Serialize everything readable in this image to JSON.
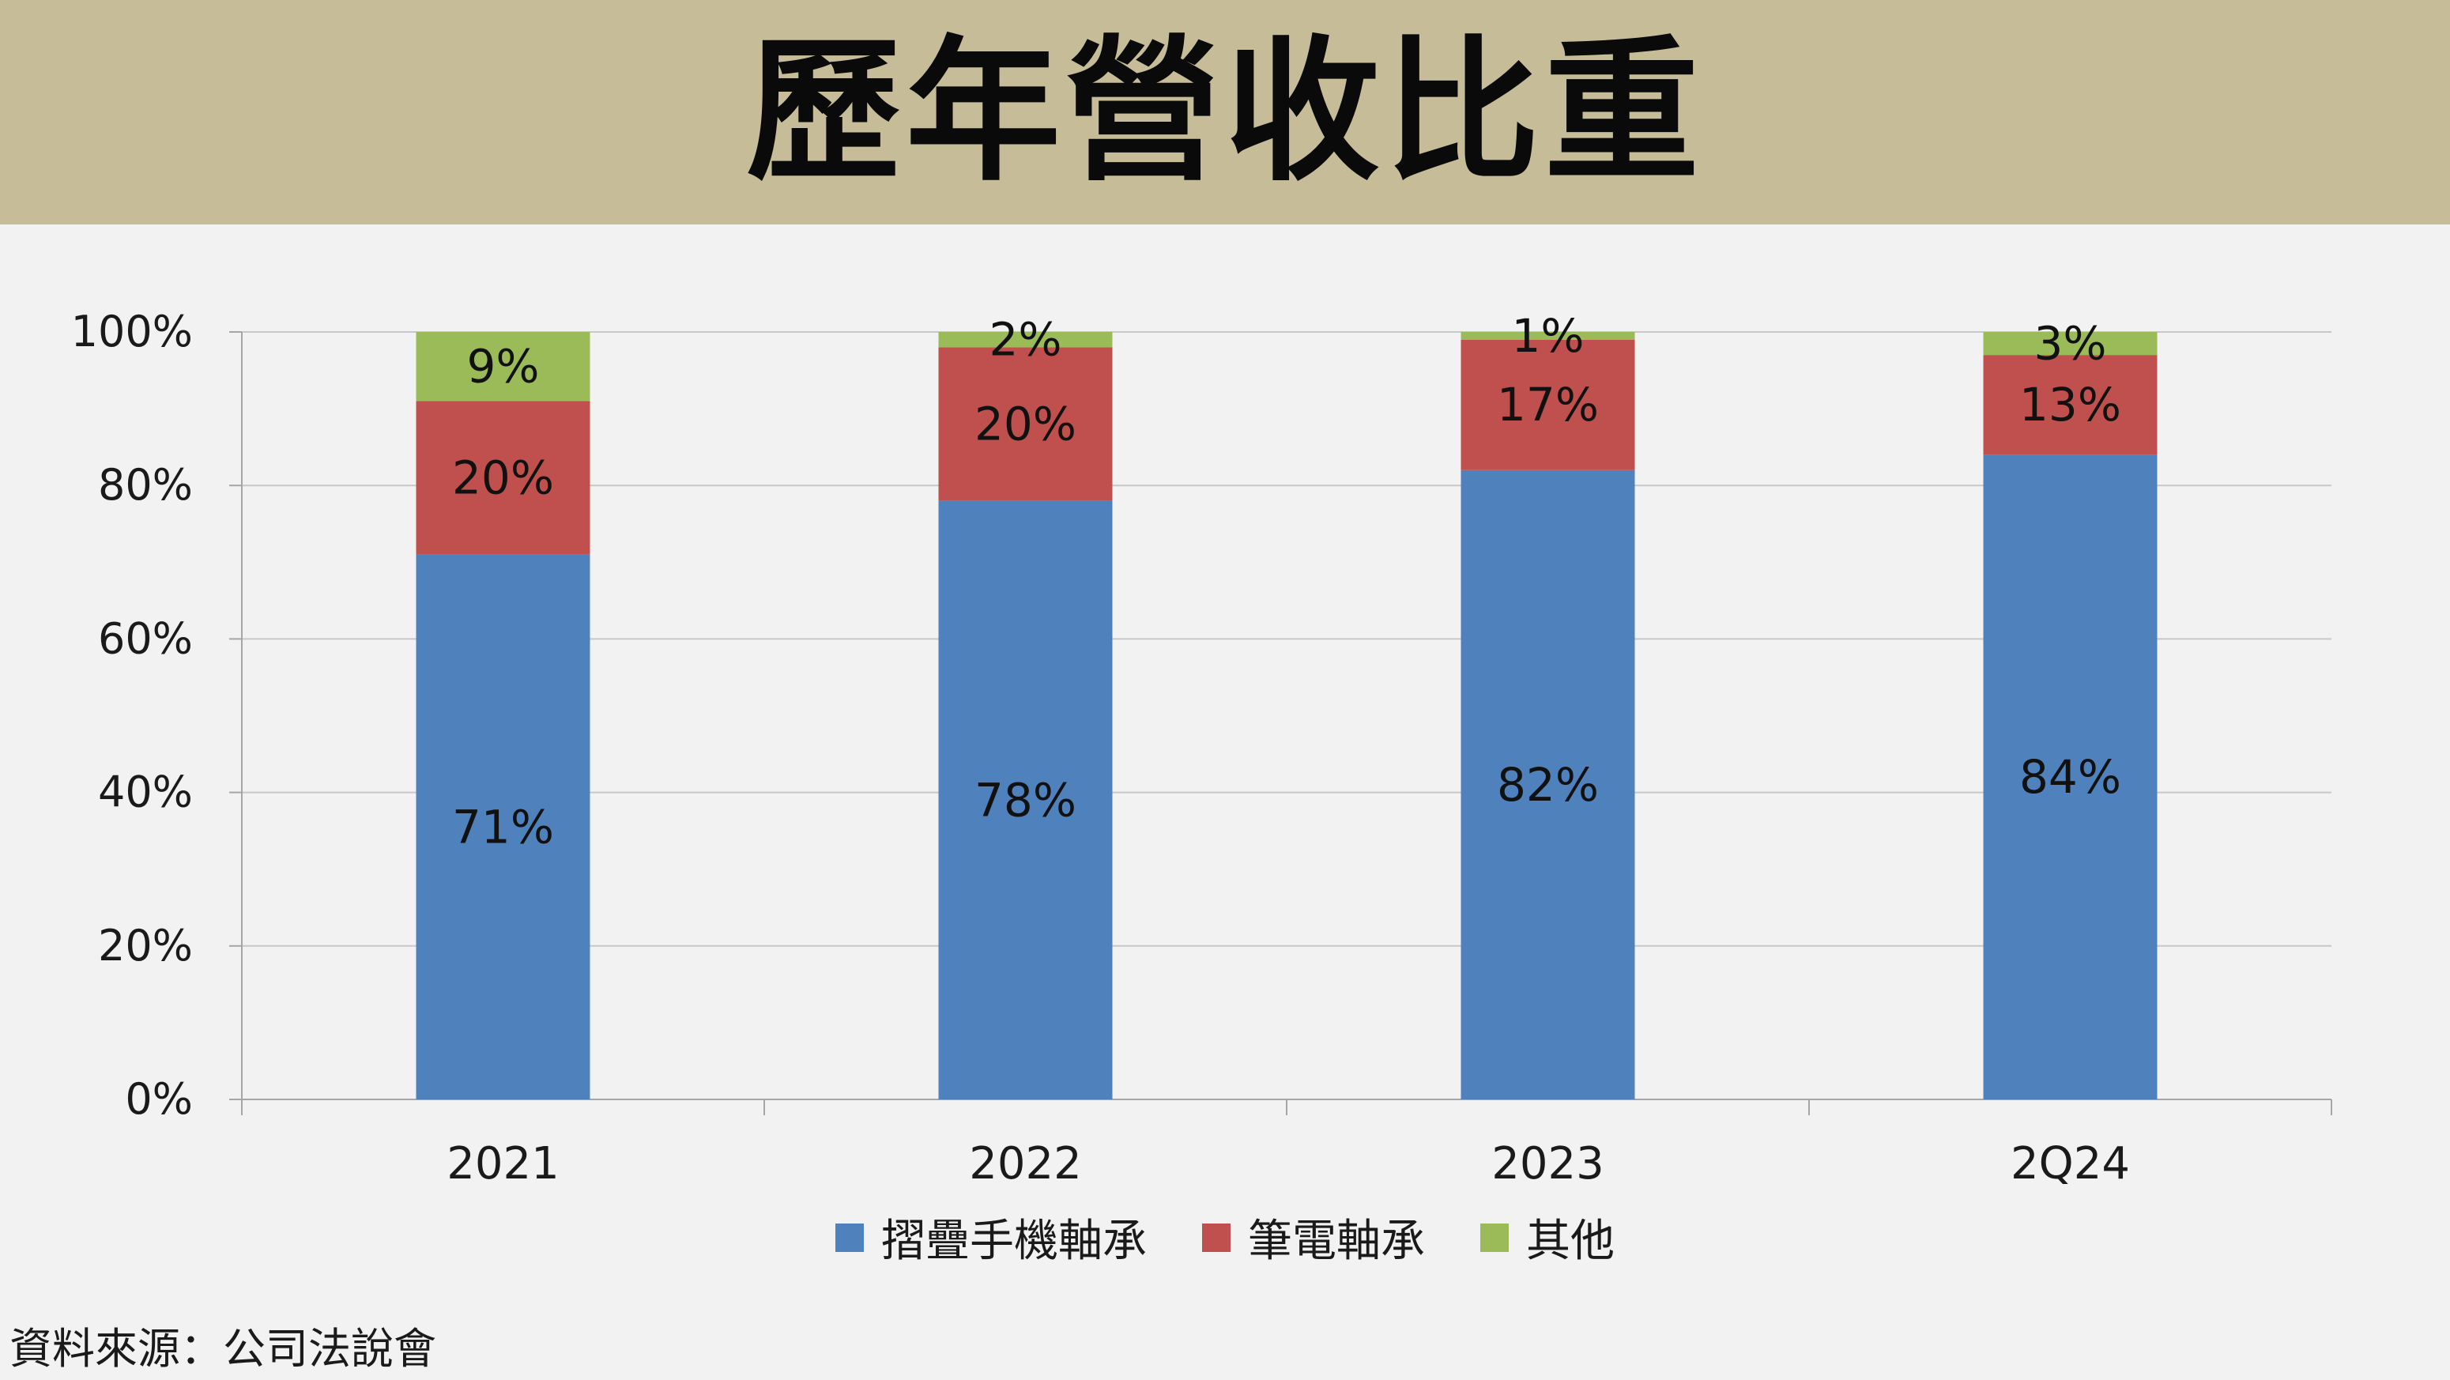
{
  "header": {
    "title": "歷年營收比重"
  },
  "chart_data": {
    "type": "bar",
    "stacked": true,
    "categories": [
      "2021",
      "2022",
      "2023",
      "2Q24"
    ],
    "series": [
      {
        "name": "摺疊手機軸承",
        "values": [
          71,
          78,
          82,
          84
        ],
        "labels": [
          "71%",
          "78%",
          "82%",
          "84%"
        ],
        "color": "#4f81bd"
      },
      {
        "name": "筆電軸承",
        "values": [
          20,
          20,
          17,
          13
        ],
        "labels": [
          "20%",
          "20%",
          "17%",
          "13%"
        ],
        "color": "#c0504d"
      },
      {
        "name": "其他",
        "values": [
          9,
          2,
          1,
          3
        ],
        "labels": [
          "9%",
          "2%",
          "1%",
          "3%"
        ],
        "color": "#9bbb59"
      }
    ],
    "ylim": [
      0,
      100
    ],
    "yticks": [
      0,
      20,
      40,
      60,
      80,
      100
    ],
    "ytick_labels": [
      "0%",
      "20%",
      "40%",
      "60%",
      "80%",
      "100%"
    ],
    "grid": true,
    "legend_position": "bottom-center"
  },
  "source_note": "資料來源：公司法說會"
}
